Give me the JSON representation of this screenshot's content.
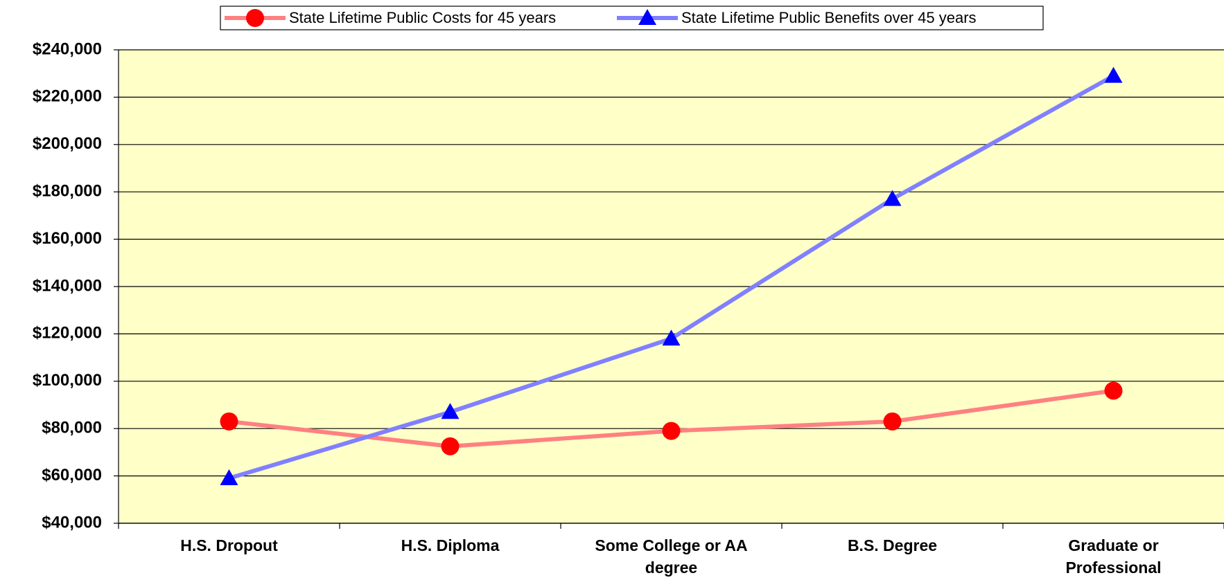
{
  "chart_data": {
    "type": "line",
    "categories": [
      "H.S. Dropout",
      "H.S. Diploma",
      "Some College or AA degree",
      "B.S. Degree",
      "Graduate or Professional"
    ],
    "series": [
      {
        "name": "State Lifetime Public Costs for 45 years",
        "color": "#ff8080",
        "marker_color": "#ff0000",
        "marker": "circle",
        "values": [
          83000,
          72500,
          79000,
          83000,
          96000
        ]
      },
      {
        "name": "State Lifetime Public Benefits over 45 years",
        "color": "#8080ff",
        "marker_color": "#0000ff",
        "marker": "triangle",
        "values": [
          59000,
          87000,
          118000,
          177000,
          229000
        ]
      }
    ],
    "ylim": [
      40000,
      240000
    ],
    "yticks": [
      {
        "value": 40000,
        "label": "$40,000"
      },
      {
        "value": 60000,
        "label": "$60,000"
      },
      {
        "value": 80000,
        "label": "$80,000"
      },
      {
        "value": 100000,
        "label": "$100,000"
      },
      {
        "value": 120000,
        "label": "$120,000"
      },
      {
        "value": 140000,
        "label": "$140,000"
      },
      {
        "value": 160000,
        "label": "$160,000"
      },
      {
        "value": 180000,
        "label": "$180,000"
      },
      {
        "value": 200000,
        "label": "$200,000"
      },
      {
        "value": 220000,
        "label": "$220,000"
      },
      {
        "value": 240000,
        "label": "$240,000"
      }
    ],
    "grid": true,
    "legend": "top",
    "plot_background": "#ffffc8"
  }
}
